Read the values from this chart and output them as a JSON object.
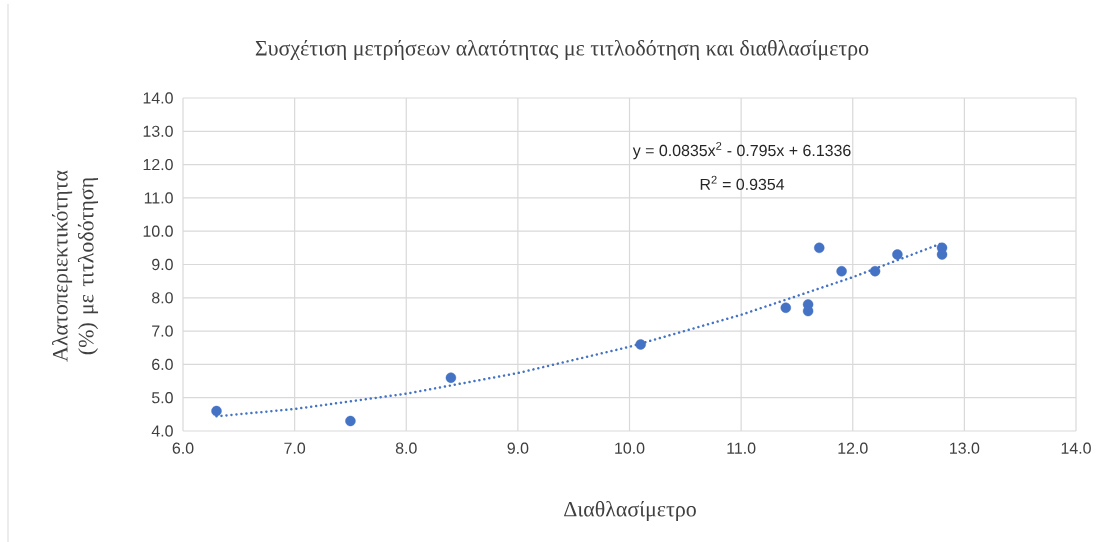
{
  "chart_data": {
    "type": "scatter",
    "title": "Συσχέτιση μετρήσεων αλατότητας με τιτλοδότηση και διαθλασίμετρο",
    "xlabel": "Διαθλασίμετρο",
    "ylabel": "Αλατοπεριεκτικότητα (%) με τιτλοδότηση",
    "series": [
      {
        "color": "#4472c4",
        "marker": "circle",
        "x": [
          6.3,
          7.5,
          8.4,
          10.1,
          11.4,
          11.6,
          11.6,
          11.7,
          11.9,
          12.2,
          12.4,
          12.8,
          12.8
        ],
        "values": [
          4.6,
          4.3,
          5.6,
          6.6,
          7.7,
          7.8,
          7.6,
          9.5,
          8.8,
          8.8,
          9.3,
          9.5,
          9.3
        ]
      },
      {
        "type": "line",
        "color": "#4472c4",
        "marker": "none",
        "line_style": "dotted",
        "x": [
          6.3,
          7.0,
          8.0,
          9.0,
          10.0,
          11.0,
          12.0,
          12.8
        ],
        "values": [
          4.44,
          4.66,
          5.12,
          5.74,
          6.53,
          7.49,
          8.62,
          9.64
        ]
      }
    ],
    "annotations": [
      "y = 0.0835x$^{2}$ - 0.795x + 6.1336",
      "R$^{2}$ = 0.9354"
    ],
    "xlim": [
      6,
      14
    ],
    "ylim": [
      4,
      14
    ],
    "xticks": [
      {
        "value": 6,
        "label": "6.0"
      },
      {
        "value": 7,
        "label": "7.0"
      },
      {
        "value": 8,
        "label": "8.0"
      },
      {
        "value": 9,
        "label": "9.0"
      },
      {
        "value": 10,
        "label": "10.0"
      },
      {
        "value": 11,
        "label": "11.0"
      },
      {
        "value": 12,
        "label": "12.0"
      },
      {
        "value": 13,
        "label": "13.0"
      },
      {
        "value": 14,
        "label": "14.0"
      }
    ],
    "yticks": [
      {
        "value": 4,
        "label": "4.0"
      },
      {
        "value": 5,
        "label": "5.0"
      },
      {
        "value": 6,
        "label": "6.0"
      },
      {
        "value": 7,
        "label": "7.0"
      },
      {
        "value": 8,
        "label": "8.0"
      },
      {
        "value": 9,
        "label": "9.0"
      },
      {
        "value": 10,
        "label": "10.0"
      },
      {
        "value": 11,
        "label": "11.0"
      },
      {
        "value": 12,
        "label": "12.0"
      },
      {
        "value": 13,
        "label": "13.0"
      },
      {
        "value": 14,
        "label": "14.0"
      }
    ],
    "grid": true
  }
}
